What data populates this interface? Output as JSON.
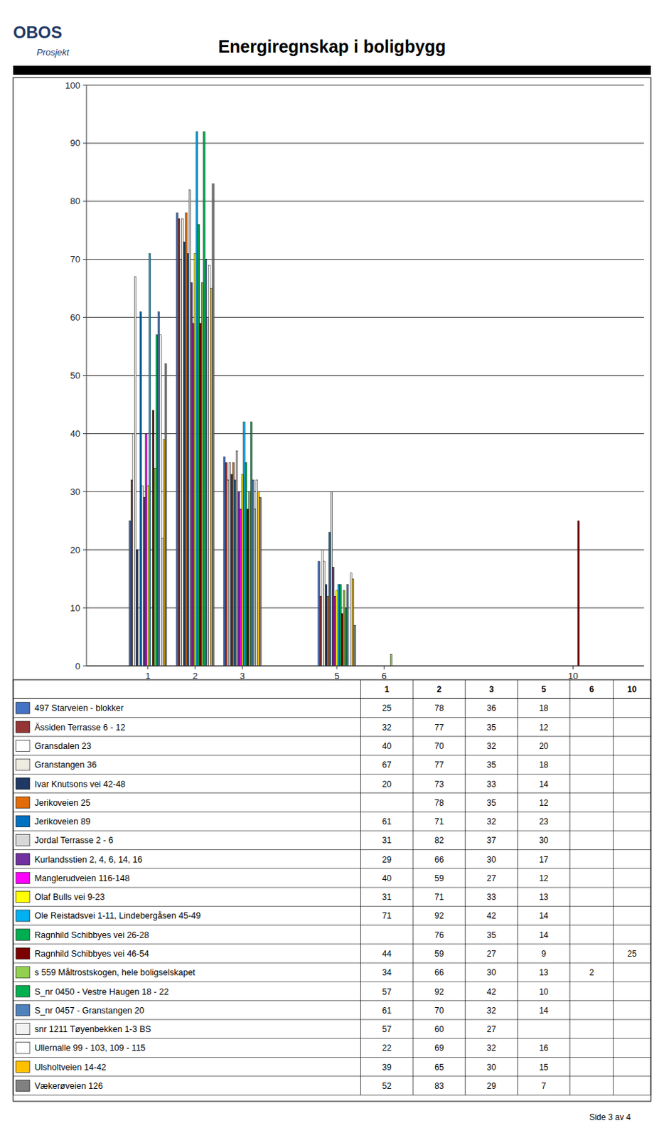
{
  "chart_data": {
    "type": "bar",
    "title": "Energiregnskap i boligbygg",
    "annotations": [
      "OBOS",
      "Prosjekt",
      "Side 3 av 4"
    ],
    "x": [
      1,
      2,
      3,
      5,
      6,
      10
    ],
    "xlim": [
      -0.3,
      11.5
    ],
    "xticks": [
      1,
      2,
      3,
      5,
      6,
      10
    ],
    "ylim": [
      0,
      100
    ],
    "yticks": [
      0,
      10,
      20,
      30,
      40,
      50,
      60,
      70,
      80,
      90,
      100
    ],
    "grid": "y",
    "legend": "bottom",
    "series": [
      {
        "name": "497 Starveien - blokker",
        "color": "#4472C4",
        "values": [
          25,
          78,
          36,
          18,
          null,
          null
        ]
      },
      {
        "name": "Ässiden Terrasse 6 - 12",
        "color": "#943634",
        "values": [
          32,
          77,
          35,
          12,
          null,
          null
        ]
      },
      {
        "name": "Gransdalen 23",
        "color": "#FFFFFF",
        "values": [
          40,
          70,
          32,
          20,
          null,
          null
        ]
      },
      {
        "name": "Granstangen 36",
        "color": "#EEECE1",
        "values": [
          67,
          77,
          35,
          18,
          null,
          null
        ]
      },
      {
        "name": "Ivar Knutsons vei 42-48",
        "color": "#1F3864",
        "values": [
          20,
          73,
          33,
          14,
          null,
          null
        ]
      },
      {
        "name": "Jerikoveien 25",
        "color": "#E26B0A",
        "values": [
          null,
          78,
          35,
          12,
          null,
          null
        ]
      },
      {
        "name": "Jerikoveien 89",
        "color": "#0070C0",
        "values": [
          61,
          71,
          32,
          23,
          null,
          null
        ]
      },
      {
        "name": "Jordal Terrasse 2 - 6",
        "color": "#D8D8D8",
        "values": [
          31,
          82,
          37,
          30,
          null,
          null
        ]
      },
      {
        "name": "Kurlandsstien 2, 4, 6, 14, 16",
        "color": "#7030A0",
        "values": [
          29,
          66,
          30,
          17,
          null,
          null
        ]
      },
      {
        "name": "Manglerudveien 116-148",
        "color": "#FF00FF",
        "values": [
          40,
          59,
          27,
          12,
          null,
          null
        ]
      },
      {
        "name": "Olaf Bulls vei 9-23",
        "color": "#FFFF00",
        "values": [
          31,
          71,
          33,
          13,
          null,
          null
        ]
      },
      {
        "name": "Ole Reistadsvei 1-11, Lindebergåsen 45-49",
        "color": "#00B0F0",
        "values": [
          71,
          92,
          42,
          14,
          null,
          null
        ]
      },
      {
        "name": "Ragnhild Schibbyes vei 26-28",
        "color": "#00B050",
        "values": [
          null,
          76,
          35,
          14,
          null,
          null
        ]
      },
      {
        "name": "Ragnhild Schibbyes vei 46-54",
        "color": "#7B0000",
        "values": [
          44,
          59,
          27,
          9,
          null,
          25
        ]
      },
      {
        "name": "s 559 Måltrostskogen, hele boligselskapet",
        "color": "#92D050",
        "values": [
          34,
          66,
          30,
          13,
          2,
          null
        ]
      },
      {
        "name": "S_nr 0450 - Vestre Haugen 18 - 22",
        "color": "#00B050",
        "values": [
          57,
          92,
          42,
          10,
          null,
          null
        ]
      },
      {
        "name": "S_nr 0457 - Granstangen 20",
        "color": "#4F81BD",
        "values": [
          61,
          70,
          32,
          14,
          null,
          null
        ]
      },
      {
        "name": "snr 1211 Tøyenbekken 1-3 BS",
        "color": "#F2F2F2",
        "values": [
          57,
          60,
          27,
          null,
          null,
          null
        ]
      },
      {
        "name": "Ullernalle 99 - 103, 109 - 115",
        "color": "#FFFFFF",
        "values": [
          22,
          69,
          32,
          16,
          null,
          null
        ]
      },
      {
        "name": "Ulsholtveien 14-42",
        "color": "#FFC000",
        "values": [
          39,
          65,
          30,
          15,
          null,
          null
        ]
      },
      {
        "name": "Vækerøveien 126",
        "color": "#808080",
        "values": [
          52,
          83,
          29,
          7,
          null,
          null
        ]
      }
    ]
  }
}
